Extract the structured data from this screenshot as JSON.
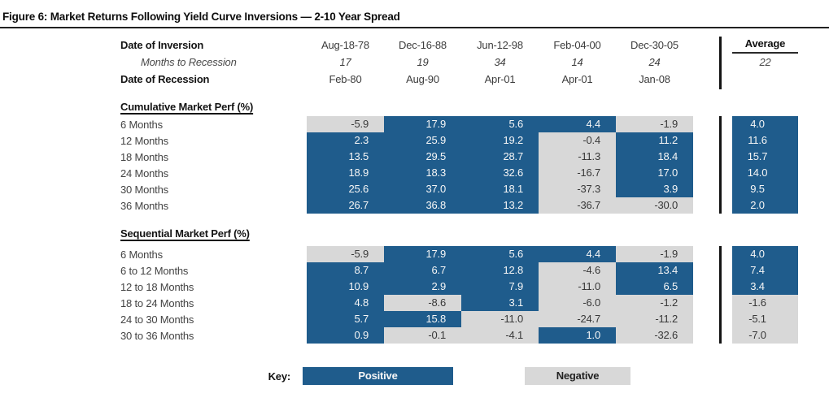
{
  "title": "Figure 6: Market Returns Following Yield Curve Inversions — 2-10 Year Spread",
  "colors": {
    "positive": "#1F5C8C",
    "negative": "#D8D8D8"
  },
  "header": {
    "date_of_inversion_label": "Date of Inversion",
    "months_to_recession_label": "Months to Recession",
    "date_of_recession_label": "Date of Recession",
    "average_label": "Average",
    "average_months": "22",
    "columns": [
      {
        "inversion": "Aug-18-78",
        "months": "17",
        "recession": "Feb-80"
      },
      {
        "inversion": "Dec-16-88",
        "months": "19",
        "recession": "Aug-90"
      },
      {
        "inversion": "Jun-12-98",
        "months": "34",
        "recession": "Apr-01"
      },
      {
        "inversion": "Feb-04-00",
        "months": "14",
        "recession": "Apr-01"
      },
      {
        "inversion": "Dec-30-05",
        "months": "24",
        "recession": "Jan-08"
      }
    ]
  },
  "sections": [
    {
      "title": "Cumulative Market Perf (%)",
      "rows": [
        {
          "label": "6 Months",
          "values": [
            "-5.9",
            "17.9",
            "5.6",
            "4.4",
            "-1.9"
          ],
          "average": "4.0"
        },
        {
          "label": "12 Months",
          "values": [
            "2.3",
            "25.9",
            "19.2",
            "-0.4",
            "11.2"
          ],
          "average": "11.6"
        },
        {
          "label": "18 Months",
          "values": [
            "13.5",
            "29.5",
            "28.7",
            "-11.3",
            "18.4"
          ],
          "average": "15.7"
        },
        {
          "label": "24 Months",
          "values": [
            "18.9",
            "18.3",
            "32.6",
            "-16.7",
            "17.0"
          ],
          "average": "14.0"
        },
        {
          "label": "30 Months",
          "values": [
            "25.6",
            "37.0",
            "18.1",
            "-37.3",
            "3.9"
          ],
          "average": "9.5"
        },
        {
          "label": "36 Months",
          "values": [
            "26.7",
            "36.8",
            "13.2",
            "-36.7",
            "-30.0"
          ],
          "average": "2.0"
        }
      ]
    },
    {
      "title": "Sequential Market Perf (%)",
      "rows": [
        {
          "label": "6 Months",
          "values": [
            "-5.9",
            "17.9",
            "5.6",
            "4.4",
            "-1.9"
          ],
          "average": "4.0"
        },
        {
          "label": "6 to 12 Months",
          "values": [
            "8.7",
            "6.7",
            "12.8",
            "-4.6",
            "13.4"
          ],
          "average": "7.4"
        },
        {
          "label": "12 to 18 Months",
          "values": [
            "10.9",
            "2.9",
            "7.9",
            "-11.0",
            "6.5"
          ],
          "average": "3.4"
        },
        {
          "label": "18 to 24 Months",
          "values": [
            "4.8",
            "-8.6",
            "3.1",
            "-6.0",
            "-1.2"
          ],
          "average": "-1.6"
        },
        {
          "label": "24 to 30 Months",
          "values": [
            "5.7",
            "15.8",
            "-11.0",
            "-24.7",
            "-11.2"
          ],
          "average": "-5.1"
        },
        {
          "label": "30 to 36 Months",
          "values": [
            "0.9",
            "-0.1",
            "-4.1",
            "1.0",
            "-32.6"
          ],
          "average": "-7.0"
        }
      ]
    }
  ],
  "key": {
    "label": "Key:",
    "positive_label": "Positive",
    "negative_label": "Negative"
  }
}
